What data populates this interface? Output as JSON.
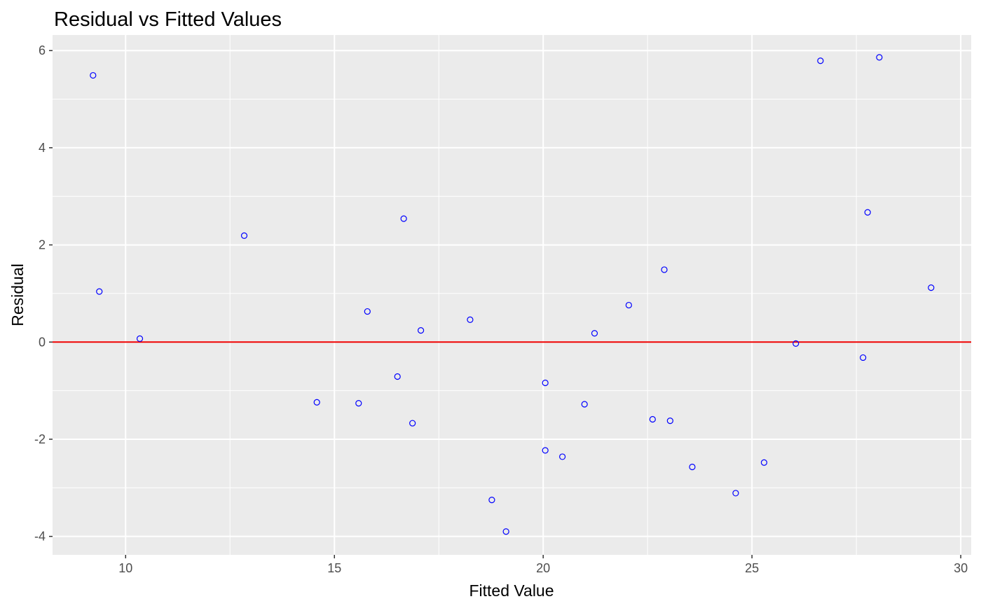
{
  "chart_data": {
    "type": "scatter",
    "title": "Residual vs Fitted Values",
    "xlabel": "Fitted Value",
    "ylabel": "Residual",
    "xlim": [
      8.25,
      30.25
    ],
    "ylim": [
      -4.38,
      6.32
    ],
    "xticks": [
      10,
      15,
      20,
      25,
      30
    ],
    "yticks": [
      -4,
      -2,
      0,
      2,
      4,
      6
    ],
    "grid": true,
    "reference_line": {
      "y": 0,
      "color": "#ee0000"
    },
    "point_color": "#0000ff",
    "panel_background": "#ebebeb",
    "series": [
      {
        "points": [
          [
            9.22,
            5.49
          ],
          [
            9.37,
            1.04
          ],
          [
            10.34,
            0.07
          ],
          [
            12.84,
            2.19
          ],
          [
            14.58,
            -1.24
          ],
          [
            15.58,
            -1.26
          ],
          [
            15.79,
            0.63
          ],
          [
            16.51,
            -0.71
          ],
          [
            16.66,
            2.54
          ],
          [
            16.87,
            -1.67
          ],
          [
            17.07,
            0.24
          ],
          [
            18.25,
            0.46
          ],
          [
            18.77,
            -3.25
          ],
          [
            19.11,
            -3.9
          ],
          [
            20.05,
            -0.84
          ],
          [
            20.05,
            -2.23
          ],
          [
            20.46,
            -2.36
          ],
          [
            20.99,
            -1.28
          ],
          [
            21.23,
            0.18
          ],
          [
            22.05,
            0.76
          ],
          [
            22.62,
            -1.59
          ],
          [
            22.9,
            1.49
          ],
          [
            23.04,
            -1.62
          ],
          [
            23.57,
            -2.57
          ],
          [
            24.61,
            -3.11
          ],
          [
            25.29,
            -2.48
          ],
          [
            26.05,
            -0.03
          ],
          [
            26.64,
            5.79
          ],
          [
            27.66,
            -0.32
          ],
          [
            27.77,
            2.67
          ],
          [
            28.05,
            5.86
          ],
          [
            29.29,
            1.12
          ]
        ]
      }
    ]
  }
}
